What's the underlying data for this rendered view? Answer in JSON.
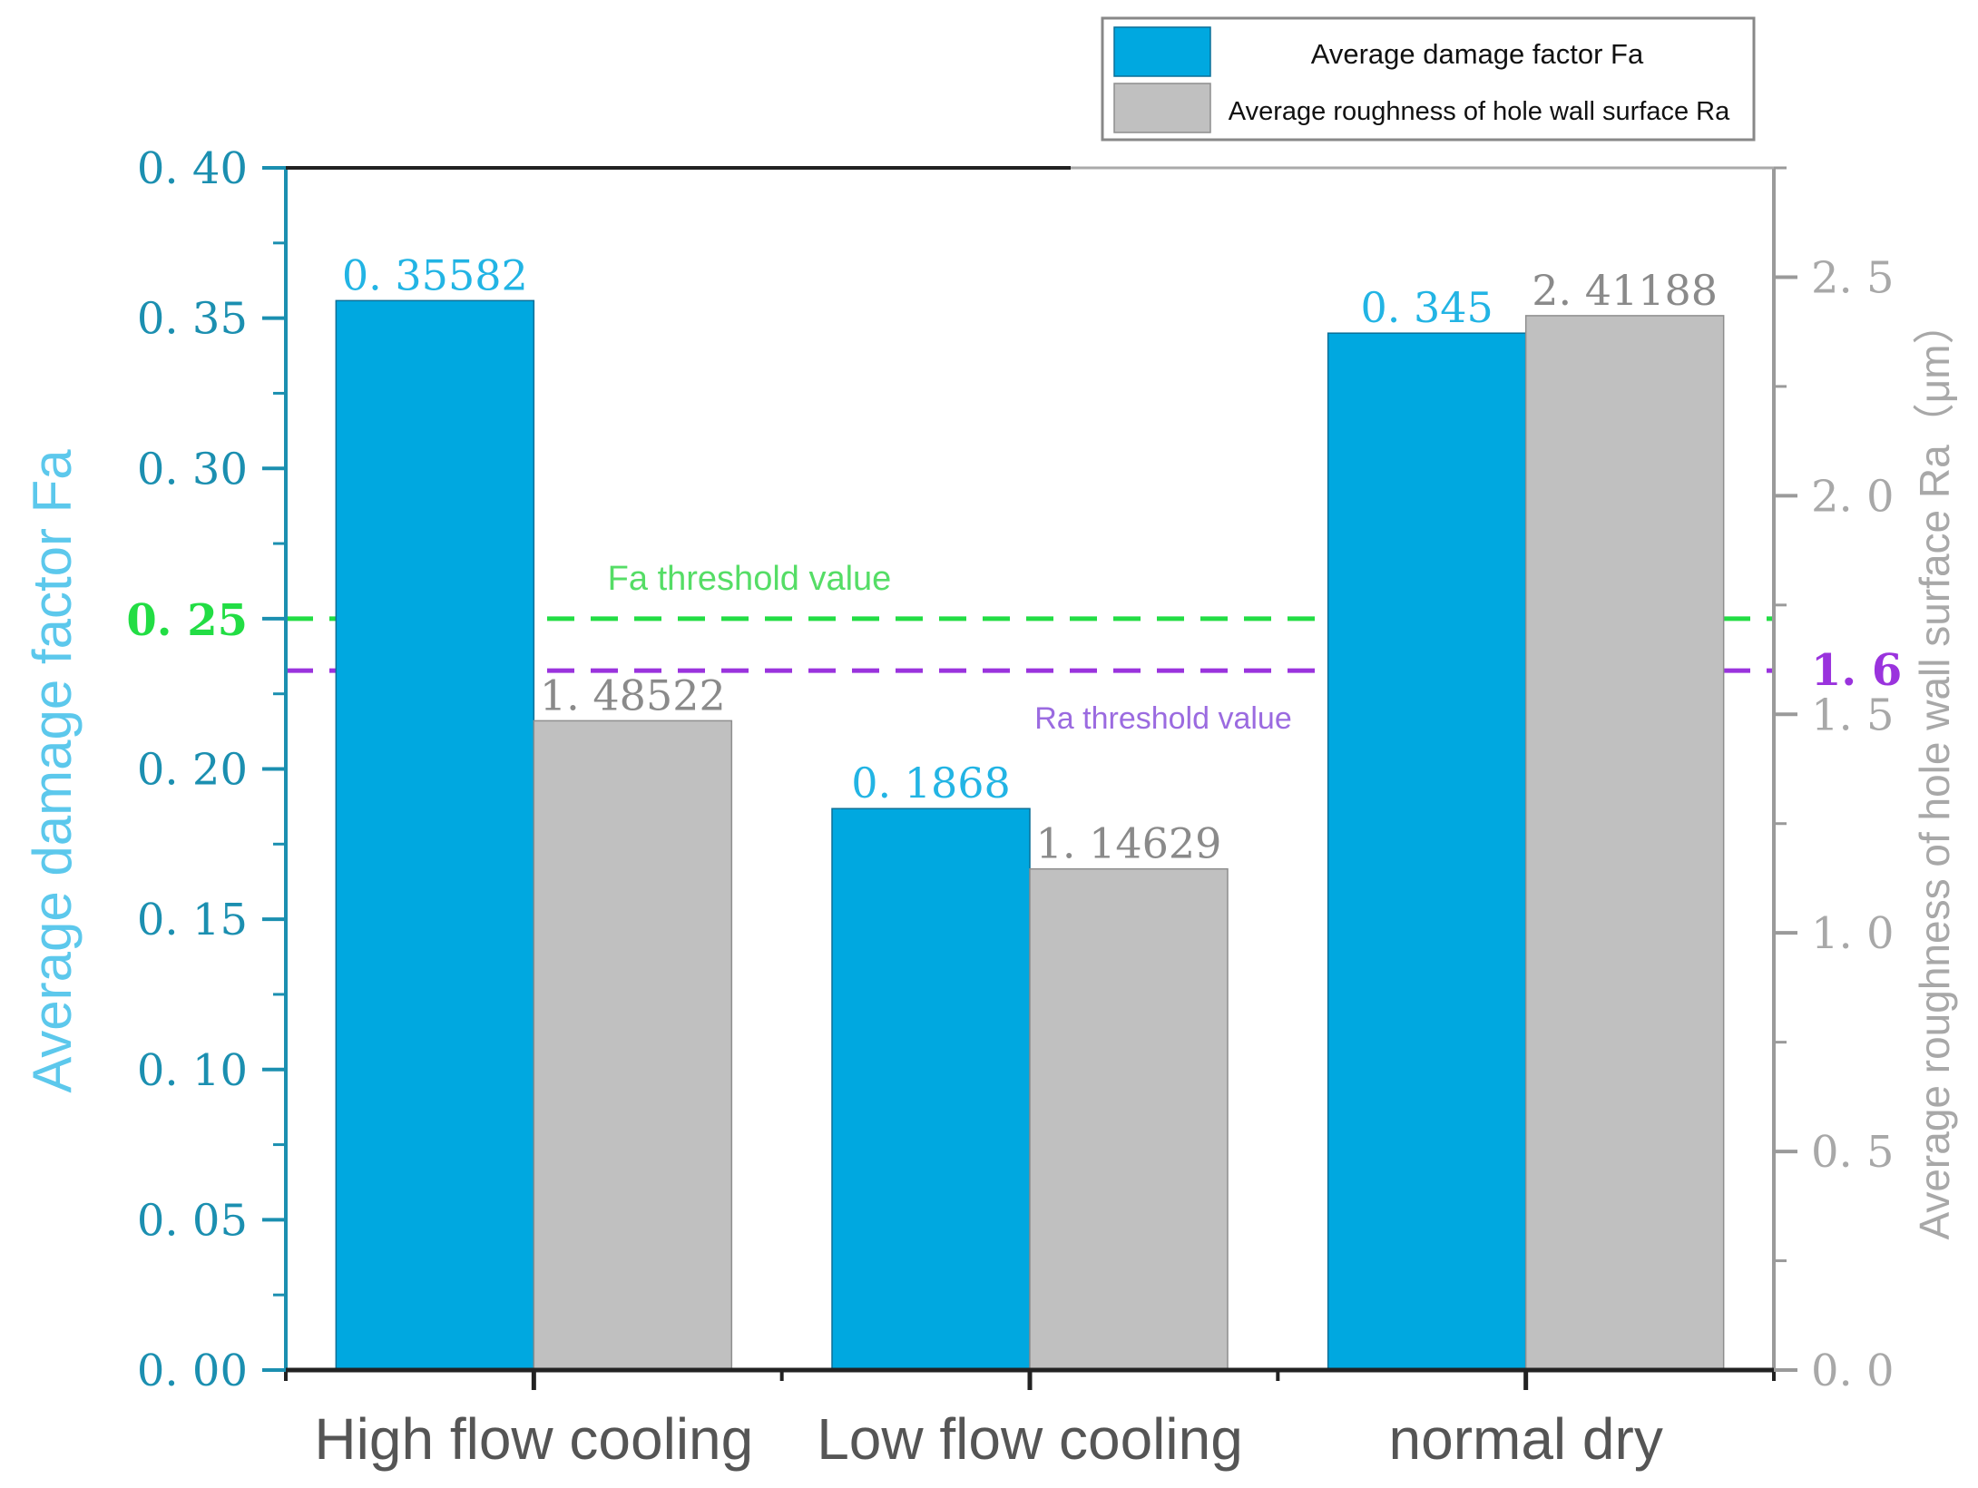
{
  "chart_data": {
    "type": "bar",
    "categories": [
      "High flow cooling",
      "Low flow cooling",
      "normal dry"
    ],
    "series": [
      {
        "name": "Average damage factor Fa",
        "axis": "left",
        "color": "#00a8e0",
        "values": [
          0.35582,
          0.1868,
          0.345
        ],
        "labels": [
          "0. 35582",
          "0. 1868",
          "0. 345"
        ]
      },
      {
        "name": "Average roughness of hole wall surface Ra",
        "axis": "right",
        "color": "#c0c0c0",
        "values": [
          1.48522,
          1.14629,
          2.41188
        ],
        "labels": [
          "1. 48522",
          "1. 14629",
          "2. 41188"
        ]
      }
    ],
    "left_axis": {
      "label": "Average damage factor Fa",
      "range": [
        0,
        0.4
      ],
      "ticks": [
        {
          "value": 0.0,
          "label": "0. 00"
        },
        {
          "value": 0.05,
          "label": "0. 05"
        },
        {
          "value": 0.1,
          "label": "0. 10"
        },
        {
          "value": 0.15,
          "label": "0. 15"
        },
        {
          "value": 0.2,
          "label": "0. 20"
        },
        {
          "value": 0.25,
          "label": "0. 25"
        },
        {
          "value": 0.3,
          "label": "0. 30"
        },
        {
          "value": 0.35,
          "label": "0. 35"
        },
        {
          "value": 0.4,
          "label": "0. 40"
        }
      ],
      "color": "#1b8fb0",
      "label_color": "#5cc8ec"
    },
    "right_axis": {
      "label": "Average roughness of hole wall surface Ra（μm）",
      "range": [
        0,
        2.75
      ],
      "ticks": [
        {
          "value": 0.0,
          "label": "0. 0"
        },
        {
          "value": 0.5,
          "label": "0. 5"
        },
        {
          "value": 1.0,
          "label": "1. 0"
        },
        {
          "value": 1.5,
          "label": "1. 5"
        },
        {
          "value": 2.0,
          "label": "2. 0"
        },
        {
          "value": 2.5,
          "label": "2. 5"
        }
      ],
      "color": "#9a9a9a"
    },
    "thresholds": [
      {
        "name": "Fa threshold value",
        "axis": "left",
        "value": 0.25,
        "tick_label": "0. 25",
        "color": "#22dd44"
      },
      {
        "name": "Ra threshold value",
        "axis": "right",
        "value": 1.6,
        "tick_label": "1. 6",
        "color": "#9a33dd",
        "text_color": "#9b6be0"
      }
    ],
    "legend": {
      "placement": "top-right",
      "entries": [
        "Average damage factor Fa",
        "Average roughness of hole wall surface Ra"
      ]
    },
    "grid": false
  }
}
